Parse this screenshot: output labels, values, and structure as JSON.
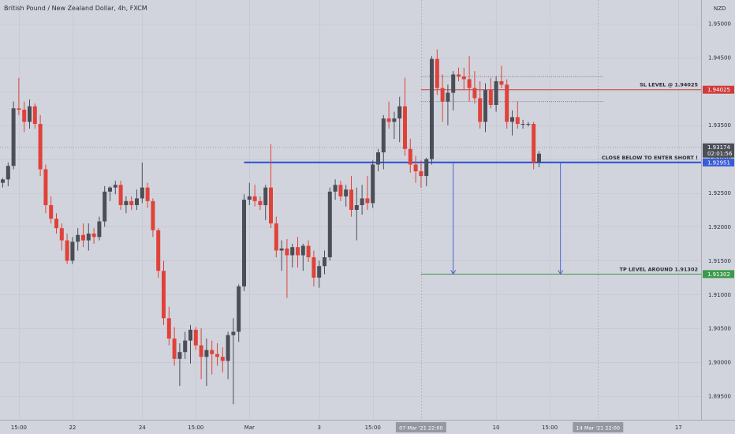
{
  "chart_data": {
    "type": "candlestick",
    "title": "British Pound / New Zealand Dollar, 4h, FXCM",
    "currency": "NZD",
    "ylim": [
      1.8915,
      1.9535
    ],
    "y_ticks": [
      {
        "value": 1.95,
        "label": "1.95000"
      },
      {
        "value": 1.945,
        "label": "1.94500"
      },
      {
        "value": 1.94,
        "label": "1.94000"
      },
      {
        "value": 1.935,
        "label": "1.93500"
      },
      {
        "value": 1.93,
        "label": "1.93000"
      },
      {
        "value": 1.925,
        "label": "1.92500"
      },
      {
        "value": 1.92,
        "label": "1.92000"
      },
      {
        "value": 1.915,
        "label": "1.91500"
      },
      {
        "value": 1.91,
        "label": "1.91000"
      },
      {
        "value": 1.905,
        "label": "1.90500"
      },
      {
        "value": 1.9,
        "label": "1.90000"
      },
      {
        "value": 1.895,
        "label": "1.89500"
      }
    ],
    "x_ticks": [
      {
        "index": 3,
        "label": "15:00"
      },
      {
        "index": 13,
        "label": "22"
      },
      {
        "index": 26,
        "label": "24"
      },
      {
        "index": 36,
        "label": "15:00"
      },
      {
        "index": 46,
        "label": "Mar"
      },
      {
        "index": 59,
        "label": "3"
      },
      {
        "index": 69,
        "label": "15:00"
      },
      {
        "index": 92,
        "label": "10"
      },
      {
        "index": 102,
        "label": "15:00"
      },
      {
        "index": 126,
        "label": "17"
      }
    ],
    "x_highlights": [
      {
        "index": 78,
        "label": "07 Mar '21  22:00"
      },
      {
        "index": 111,
        "label": "14 Mar '21  22:00"
      }
    ],
    "candles": [
      {
        "o": 1.9265,
        "h": 1.9272,
        "l": 1.9258,
        "c": 1.927
      },
      {
        "o": 1.927,
        "h": 1.9295,
        "l": 1.926,
        "c": 1.929
      },
      {
        "o": 1.929,
        "h": 1.9385,
        "l": 1.9285,
        "c": 1.9375
      },
      {
        "o": 1.9375,
        "h": 1.942,
        "l": 1.9365,
        "c": 1.9373
      },
      {
        "o": 1.9373,
        "h": 1.9385,
        "l": 1.934,
        "c": 1.9355
      },
      {
        "o": 1.9355,
        "h": 1.9388,
        "l": 1.9345,
        "c": 1.9378
      },
      {
        "o": 1.9378,
        "h": 1.9382,
        "l": 1.9345,
        "c": 1.9352
      },
      {
        "o": 1.9352,
        "h": 1.9365,
        "l": 1.9275,
        "c": 1.9285
      },
      {
        "o": 1.9285,
        "h": 1.9292,
        "l": 1.922,
        "c": 1.9232
      },
      {
        "o": 1.9232,
        "h": 1.9245,
        "l": 1.9205,
        "c": 1.9212
      },
      {
        "o": 1.9212,
        "h": 1.922,
        "l": 1.919,
        "c": 1.9198
      },
      {
        "o": 1.9198,
        "h": 1.9205,
        "l": 1.9165,
        "c": 1.918
      },
      {
        "o": 1.918,
        "h": 1.919,
        "l": 1.9145,
        "c": 1.915
      },
      {
        "o": 1.915,
        "h": 1.9185,
        "l": 1.9145,
        "c": 1.9178
      },
      {
        "o": 1.9178,
        "h": 1.9198,
        "l": 1.9165,
        "c": 1.9188
      },
      {
        "o": 1.9188,
        "h": 1.9205,
        "l": 1.917,
        "c": 1.918
      },
      {
        "o": 1.918,
        "h": 1.9205,
        "l": 1.9165,
        "c": 1.919
      },
      {
        "o": 1.919,
        "h": 1.9198,
        "l": 1.9175,
        "c": 1.9185
      },
      {
        "o": 1.9185,
        "h": 1.9215,
        "l": 1.918,
        "c": 1.9208
      },
      {
        "o": 1.9208,
        "h": 1.926,
        "l": 1.92,
        "c": 1.9252
      },
      {
        "o": 1.9252,
        "h": 1.926,
        "l": 1.9238,
        "c": 1.9258
      },
      {
        "o": 1.9258,
        "h": 1.9268,
        "l": 1.9248,
        "c": 1.9262
      },
      {
        "o": 1.9262,
        "h": 1.9268,
        "l": 1.9225,
        "c": 1.9232
      },
      {
        "o": 1.9232,
        "h": 1.9245,
        "l": 1.922,
        "c": 1.9238
      },
      {
        "o": 1.9238,
        "h": 1.9245,
        "l": 1.9225,
        "c": 1.9232
      },
      {
        "o": 1.9232,
        "h": 1.9255,
        "l": 1.9225,
        "c": 1.9242
      },
      {
        "o": 1.9242,
        "h": 1.9295,
        "l": 1.9235,
        "c": 1.9258
      },
      {
        "o": 1.9258,
        "h": 1.9265,
        "l": 1.9228,
        "c": 1.9238
      },
      {
        "o": 1.9238,
        "h": 1.9242,
        "l": 1.9185,
        "c": 1.9195
      },
      {
        "o": 1.9195,
        "h": 1.9198,
        "l": 1.9125,
        "c": 1.9135
      },
      {
        "o": 1.9135,
        "h": 1.915,
        "l": 1.9055,
        "c": 1.9065
      },
      {
        "o": 1.9065,
        "h": 1.9082,
        "l": 1.9025,
        "c": 1.9035
      },
      {
        "o": 1.9035,
        "h": 1.9052,
        "l": 1.8995,
        "c": 1.9005
      },
      {
        "o": 1.9005,
        "h": 1.9028,
        "l": 1.8965,
        "c": 1.9015
      },
      {
        "o": 1.9015,
        "h": 1.9045,
        "l": 1.9005,
        "c": 1.9032
      },
      {
        "o": 1.9032,
        "h": 1.9055,
        "l": 1.8998,
        "c": 1.9048
      },
      {
        "o": 1.9048,
        "h": 1.9052,
        "l": 1.9018,
        "c": 1.9025
      },
      {
        "o": 1.9025,
        "h": 1.905,
        "l": 1.8975,
        "c": 1.9008
      },
      {
        "o": 1.9008,
        "h": 1.9035,
        "l": 1.8965,
        "c": 1.9018
      },
      {
        "o": 1.9018,
        "h": 1.9032,
        "l": 1.8982,
        "c": 1.9012
      },
      {
        "o": 1.9012,
        "h": 1.9028,
        "l": 1.8995,
        "c": 1.9008
      },
      {
        "o": 1.9008,
        "h": 1.9022,
        "l": 1.8985,
        "c": 1.9002
      },
      {
        "o": 1.9002,
        "h": 1.9045,
        "l": 1.8975,
        "c": 1.904
      },
      {
        "o": 1.904,
        "h": 1.9065,
        "l": 1.8938,
        "c": 1.9045
      },
      {
        "o": 1.9045,
        "h": 1.9115,
        "l": 1.903,
        "c": 1.9112
      },
      {
        "o": 1.9112,
        "h": 1.9248,
        "l": 1.9105,
        "c": 1.924
      },
      {
        "o": 1.924,
        "h": 1.9265,
        "l": 1.9232,
        "c": 1.9245
      },
      {
        "o": 1.9245,
        "h": 1.9262,
        "l": 1.923,
        "c": 1.9238
      },
      {
        "o": 1.9238,
        "h": 1.9245,
        "l": 1.9225,
        "c": 1.9232
      },
      {
        "o": 1.9232,
        "h": 1.9262,
        "l": 1.921,
        "c": 1.9258
      },
      {
        "o": 1.9258,
        "h": 1.9322,
        "l": 1.9198,
        "c": 1.9205
      },
      {
        "o": 1.9205,
        "h": 1.9215,
        "l": 1.9155,
        "c": 1.9165
      },
      {
        "o": 1.9165,
        "h": 1.918,
        "l": 1.9135,
        "c": 1.9168
      },
      {
        "o": 1.9168,
        "h": 1.9182,
        "l": 1.9095,
        "c": 1.9158
      },
      {
        "o": 1.9158,
        "h": 1.9175,
        "l": 1.914,
        "c": 1.917
      },
      {
        "o": 1.917,
        "h": 1.9185,
        "l": 1.914,
        "c": 1.9158
      },
      {
        "o": 1.9158,
        "h": 1.9175,
        "l": 1.9135,
        "c": 1.9172
      },
      {
        "o": 1.9172,
        "h": 1.918,
        "l": 1.9148,
        "c": 1.9155
      },
      {
        "o": 1.9155,
        "h": 1.9165,
        "l": 1.9112,
        "c": 1.9125
      },
      {
        "o": 1.9125,
        "h": 1.915,
        "l": 1.911,
        "c": 1.9142
      },
      {
        "o": 1.9142,
        "h": 1.9165,
        "l": 1.913,
        "c": 1.9155
      },
      {
        "o": 1.9155,
        "h": 1.9258,
        "l": 1.915,
        "c": 1.9252
      },
      {
        "o": 1.9252,
        "h": 1.927,
        "l": 1.924,
        "c": 1.9262
      },
      {
        "o": 1.9262,
        "h": 1.9268,
        "l": 1.9238,
        "c": 1.9245
      },
      {
        "o": 1.9245,
        "h": 1.9262,
        "l": 1.923,
        "c": 1.9255
      },
      {
        "o": 1.9255,
        "h": 1.9275,
        "l": 1.9215,
        "c": 1.9225
      },
      {
        "o": 1.9225,
        "h": 1.9258,
        "l": 1.918,
        "c": 1.9232
      },
      {
        "o": 1.9232,
        "h": 1.9262,
        "l": 1.9218,
        "c": 1.9242
      },
      {
        "o": 1.9242,
        "h": 1.9275,
        "l": 1.9225,
        "c": 1.9235
      },
      {
        "o": 1.9235,
        "h": 1.9298,
        "l": 1.9228,
        "c": 1.9292
      },
      {
        "o": 1.9292,
        "h": 1.9315,
        "l": 1.9282,
        "c": 1.931
      },
      {
        "o": 1.931,
        "h": 1.9365,
        "l": 1.9285,
        "c": 1.936
      },
      {
        "o": 1.936,
        "h": 1.9385,
        "l": 1.9345,
        "c": 1.9355
      },
      {
        "o": 1.9355,
        "h": 1.937,
        "l": 1.933,
        "c": 1.936
      },
      {
        "o": 1.936,
        "h": 1.9392,
        "l": 1.9325,
        "c": 1.9378
      },
      {
        "o": 1.9378,
        "h": 1.942,
        "l": 1.9305,
        "c": 1.9315
      },
      {
        "o": 1.9315,
        "h": 1.933,
        "l": 1.928,
        "c": 1.9292
      },
      {
        "o": 1.9292,
        "h": 1.9305,
        "l": 1.9265,
        "c": 1.9282
      },
      {
        "o": 1.9282,
        "h": 1.9298,
        "l": 1.9258,
        "c": 1.9275
      },
      {
        "o": 1.9275,
        "h": 1.9302,
        "l": 1.926,
        "c": 1.93
      },
      {
        "o": 1.93,
        "h": 1.9452,
        "l": 1.9292,
        "c": 1.9448
      },
      {
        "o": 1.9448,
        "h": 1.9462,
        "l": 1.9395,
        "c": 1.9405
      },
      {
        "o": 1.9405,
        "h": 1.9425,
        "l": 1.9355,
        "c": 1.9385
      },
      {
        "o": 1.9385,
        "h": 1.941,
        "l": 1.935,
        "c": 1.9398
      },
      {
        "o": 1.9398,
        "h": 1.943,
        "l": 1.9372,
        "c": 1.9425
      },
      {
        "o": 1.9425,
        "h": 1.9435,
        "l": 1.9415,
        "c": 1.9422
      },
      {
        "o": 1.9422,
        "h": 1.9435,
        "l": 1.9402,
        "c": 1.9418
      },
      {
        "o": 1.9418,
        "h": 1.9452,
        "l": 1.9385,
        "c": 1.9405
      },
      {
        "o": 1.9405,
        "h": 1.943,
        "l": 1.9382,
        "c": 1.939
      },
      {
        "o": 1.939,
        "h": 1.9415,
        "l": 1.9345,
        "c": 1.9355
      },
      {
        "o": 1.9355,
        "h": 1.9412,
        "l": 1.934,
        "c": 1.9402
      },
      {
        "o": 1.9402,
        "h": 1.942,
        "l": 1.9375,
        "c": 1.938
      },
      {
        "o": 1.938,
        "h": 1.9422,
        "l": 1.937,
        "c": 1.9415
      },
      {
        "o": 1.9415,
        "h": 1.9438,
        "l": 1.9405,
        "c": 1.941
      },
      {
        "o": 1.941,
        "h": 1.9418,
        "l": 1.9345,
        "c": 1.9355
      },
      {
        "o": 1.9355,
        "h": 1.9372,
        "l": 1.9335,
        "c": 1.9362
      },
      {
        "o": 1.9362,
        "h": 1.9385,
        "l": 1.9345,
        "c": 1.9352
      },
      {
        "o": 1.9352,
        "h": 1.9358,
        "l": 1.9345,
        "c": 1.9352
      },
      {
        "o": 1.9352,
        "h": 1.9355,
        "l": 1.9348,
        "c": 1.9352
      },
      {
        "o": 1.9352,
        "h": 1.9355,
        "l": 1.9285,
        "c": 1.9295
      },
      {
        "o": 1.9295,
        "h": 1.9312,
        "l": 1.9288,
        "c": 1.9308
      }
    ],
    "horizontal_lines": [
      {
        "value": 1.94025,
        "color": "#d23a3a",
        "text": "SL LEVEL @ 1.94025",
        "axis_label": "1.94025"
      },
      {
        "value": 1.92951,
        "color": "#3b5bd6",
        "text": "CLOSE BELOW TO ENTER SHORT !",
        "axis_label": "1.92951"
      },
      {
        "value": 1.91302,
        "color": "#3c9a4c",
        "text": "TP LEVEL AROUND 1.91302",
        "axis_label": "1.91302"
      }
    ],
    "current_price": {
      "value": 1.93174,
      "label": "1.93174",
      "countdown": "02:01:56"
    },
    "dotted_levels": [
      1.9422,
      1.9385
    ],
    "arrows": [
      {
        "from_index": 84,
        "from": 1.92951,
        "to": 1.91302
      },
      {
        "from_index": 104,
        "from": 1.92951,
        "to": 1.91302
      }
    ],
    "grid": true,
    "colors": {
      "up": "#4a4e57",
      "down": "#e0423a",
      "background": "#d1d4dc"
    }
  }
}
